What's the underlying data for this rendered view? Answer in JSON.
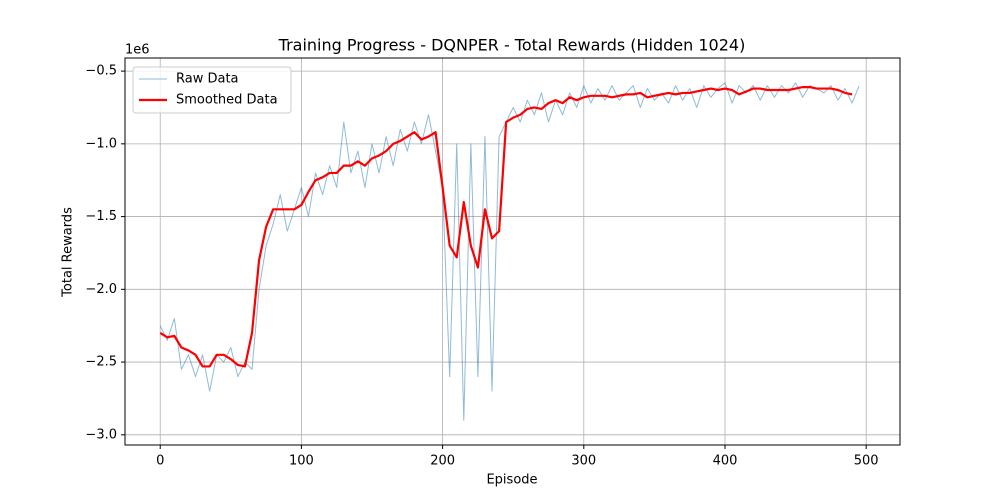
{
  "chart_data": {
    "type": "line",
    "title": "Training Progress - DQNPER - Total Rewards (Hidden 1024)",
    "x_label": "Episode",
    "y_label": "Total Rewards",
    "y_offset_label": "1e6",
    "xlim": [
      -24.95,
      523.95
    ],
    "xticks": [
      0,
      100,
      200,
      300,
      400,
      500
    ],
    "ylim": [
      -3.07,
      -0.41
    ],
    "yticks": [
      {
        "value": -3.0,
        "label": "−3.0"
      },
      {
        "value": -2.5,
        "label": "−2.5"
      },
      {
        "value": -2.0,
        "label": "−2.0"
      },
      {
        "value": -1.5,
        "label": "−1.5"
      },
      {
        "value": -1.0,
        "label": "−1.0"
      },
      {
        "value": -0.5,
        "label": "−0.5"
      }
    ],
    "grid": true,
    "legend": "upper left",
    "series": [
      {
        "name": "Raw Data",
        "color": "#1f77b4",
        "opacity": 0.5,
        "width": 1,
        "x": [
          0,
          5,
          10,
          15,
          20,
          25,
          30,
          35,
          40,
          45,
          50,
          55,
          60,
          65,
          70,
          75,
          80,
          85,
          90,
          95,
          100,
          105,
          110,
          115,
          120,
          125,
          130,
          135,
          140,
          145,
          150,
          155,
          160,
          165,
          170,
          175,
          180,
          185,
          190,
          195,
          200,
          205,
          210,
          215,
          220,
          225,
          230,
          235,
          240,
          245,
          250,
          255,
          260,
          265,
          270,
          275,
          280,
          285,
          290,
          295,
          300,
          305,
          310,
          315,
          320,
          325,
          330,
          335,
          340,
          345,
          350,
          355,
          360,
          365,
          370,
          375,
          380,
          385,
          390,
          395,
          400,
          405,
          410,
          415,
          420,
          425,
          430,
          435,
          440,
          445,
          450,
          455,
          460,
          465,
          470,
          475,
          480,
          485,
          490,
          495
        ],
        "values": [
          -2.25,
          -2.35,
          -2.2,
          -2.55,
          -2.45,
          -2.6,
          -2.45,
          -2.7,
          -2.45,
          -2.5,
          -2.4,
          -2.6,
          -2.5,
          -2.55,
          -2.0,
          -1.7,
          -1.55,
          -1.35,
          -1.6,
          -1.45,
          -1.3,
          -1.5,
          -1.2,
          -1.35,
          -1.15,
          -1.3,
          -0.85,
          -1.2,
          -1.05,
          -1.3,
          -1.0,
          -1.2,
          -0.95,
          -1.15,
          -0.9,
          -1.05,
          -0.85,
          -1.0,
          -0.8,
          -1.05,
          -1.3,
          -2.6,
          -1.0,
          -2.9,
          -1.0,
          -2.6,
          -0.95,
          -2.7,
          -0.95,
          -0.85,
          -0.75,
          -0.85,
          -0.7,
          -0.8,
          -0.65,
          -0.85,
          -0.7,
          -0.8,
          -0.65,
          -0.75,
          -0.6,
          -0.72,
          -0.62,
          -0.7,
          -0.6,
          -0.7,
          -0.65,
          -0.6,
          -0.75,
          -0.62,
          -0.7,
          -0.65,
          -0.72,
          -0.6,
          -0.7,
          -0.62,
          -0.75,
          -0.6,
          -0.68,
          -0.62,
          -0.58,
          -0.72,
          -0.6,
          -0.65,
          -0.6,
          -0.7,
          -0.6,
          -0.68,
          -0.6,
          -0.65,
          -0.58,
          -0.68,
          -0.6,
          -0.62,
          -0.65,
          -0.6,
          -0.7,
          -0.62,
          -0.72,
          -0.6
        ]
      },
      {
        "name": "Smoothed Data",
        "color": "#ff0000",
        "opacity": 1,
        "width": 2.2,
        "x": [
          0,
          5,
          10,
          15,
          20,
          25,
          30,
          35,
          40,
          45,
          50,
          55,
          60,
          65,
          70,
          75,
          80,
          85,
          90,
          95,
          100,
          105,
          110,
          115,
          120,
          125,
          130,
          135,
          140,
          145,
          150,
          155,
          160,
          165,
          170,
          175,
          180,
          185,
          190,
          195,
          200,
          205,
          210,
          215,
          220,
          225,
          230,
          235,
          240,
          245,
          250,
          255,
          260,
          265,
          270,
          275,
          280,
          285,
          290,
          295,
          300,
          305,
          310,
          315,
          320,
          325,
          330,
          335,
          340,
          345,
          350,
          355,
          360,
          365,
          370,
          375,
          380,
          385,
          390,
          395,
          400,
          405,
          410,
          415,
          420,
          425,
          430,
          435,
          440,
          445,
          450,
          455,
          460,
          465,
          470,
          475,
          480,
          485,
          490
        ],
        "values": [
          -2.3,
          -2.33,
          -2.32,
          -2.4,
          -2.42,
          -2.45,
          -2.53,
          -2.53,
          -2.45,
          -2.45,
          -2.48,
          -2.52,
          -2.53,
          -2.3,
          -1.8,
          -1.57,
          -1.45,
          -1.45,
          -1.45,
          -1.45,
          -1.42,
          -1.33,
          -1.25,
          -1.23,
          -1.2,
          -1.2,
          -1.15,
          -1.15,
          -1.12,
          -1.15,
          -1.1,
          -1.08,
          -1.05,
          -1.0,
          -0.98,
          -0.95,
          -0.92,
          -0.97,
          -0.95,
          -0.92,
          -1.3,
          -1.7,
          -1.78,
          -1.4,
          -1.7,
          -1.85,
          -1.45,
          -1.65,
          -1.6,
          -0.85,
          -0.82,
          -0.8,
          -0.76,
          -0.75,
          -0.76,
          -0.72,
          -0.7,
          -0.72,
          -0.68,
          -0.7,
          -0.68,
          -0.67,
          -0.67,
          -0.67,
          -0.68,
          -0.67,
          -0.66,
          -0.66,
          -0.65,
          -0.68,
          -0.67,
          -0.66,
          -0.65,
          -0.66,
          -0.65,
          -0.65,
          -0.64,
          -0.63,
          -0.62,
          -0.63,
          -0.62,
          -0.63,
          -0.66,
          -0.64,
          -0.62,
          -0.62,
          -0.63,
          -0.63,
          -0.63,
          -0.63,
          -0.62,
          -0.61,
          -0.61,
          -0.62,
          -0.62,
          -0.62,
          -0.63,
          -0.65,
          -0.66
        ]
      }
    ]
  }
}
